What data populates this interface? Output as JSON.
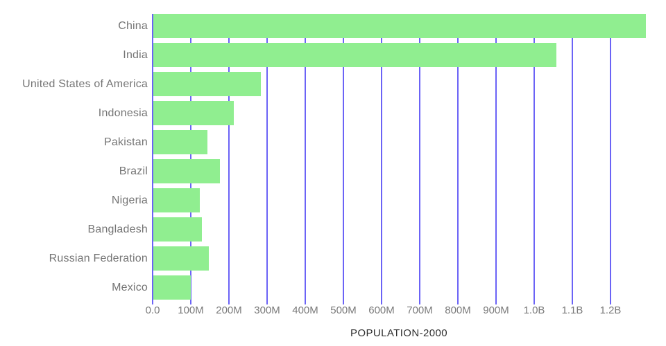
{
  "chart_data": {
    "type": "bar",
    "orientation": "horizontal",
    "title": "POPULATION-2000",
    "categories": [
      "China",
      "India",
      "United States of America",
      "Indonesia",
      "Pakistan",
      "Brazil",
      "Nigeria",
      "Bangladesh",
      "Russian Federation",
      "Mexico"
    ],
    "series": [
      {
        "name": "Population 2000",
        "values_millions": [
          1290,
          1057,
          282,
          211,
          142,
          175,
          122,
          127,
          146,
          98
        ]
      }
    ],
    "x_tick_labels": [
      "0.0",
      "100M",
      "200M",
      "300M",
      "400M",
      "500M",
      "600M",
      "700M",
      "800M",
      "900M",
      "1.0B",
      "1.1B",
      "1.2B"
    ],
    "x_tick_values_millions": [
      0,
      100,
      200,
      300,
      400,
      500,
      600,
      700,
      800,
      900,
      1000,
      1100,
      1200
    ],
    "xlim_millions": [
      0,
      1345
    ],
    "xlabel": "POPULATION-2000",
    "ylabel": "",
    "grid": true,
    "legend": false,
    "colors": {
      "bar": "#90ee90",
      "gridline": "#6b63f6",
      "category_label": "#757575",
      "tick_label": "#7a7a7a",
      "title": "#2f2f2f",
      "background": "#ffffff"
    }
  }
}
